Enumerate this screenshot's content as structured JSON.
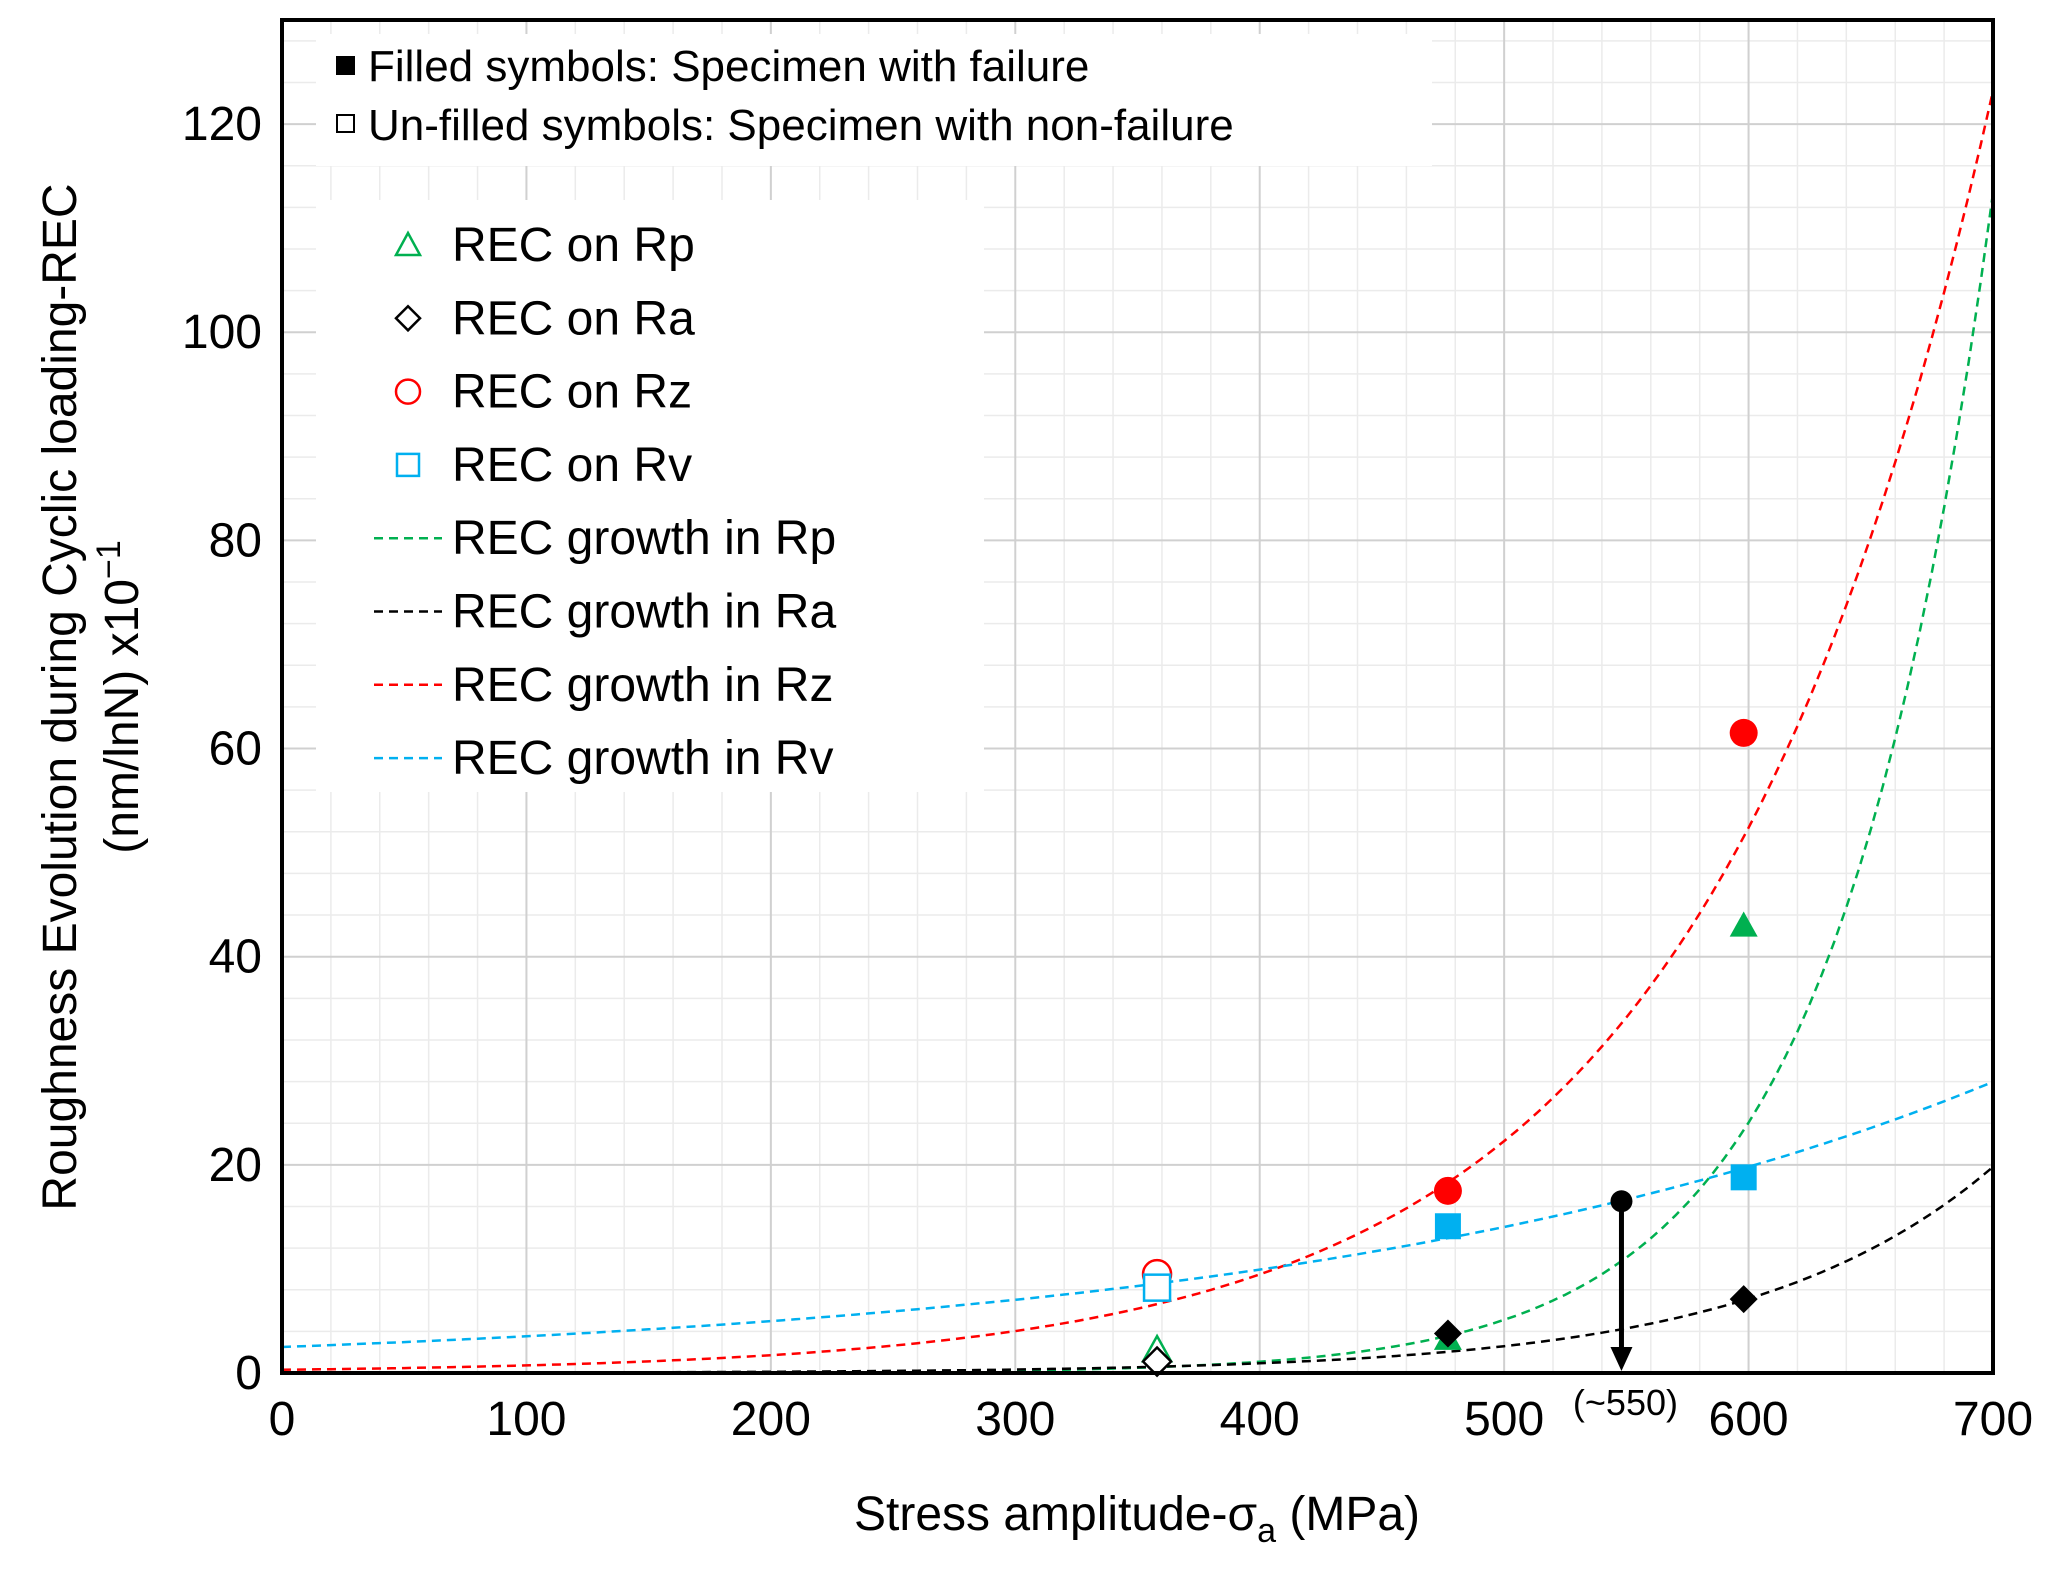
{
  "chart_data": {
    "type": "scatter",
    "xlabel_main": "Stress amplitude-σ",
    "xlabel_sub": "a",
    "xlabel_unit": " (MPa)",
    "ylabel_line1": "Roughness Evolution during Cyclic loading-REC",
    "ylabel_line2_main": "(nm/lnN) x10",
    "ylabel_line2_exp": "−1",
    "xlim": [
      0,
      700
    ],
    "ylim": [
      0,
      130
    ],
    "x_ticks": [
      0,
      100,
      200,
      300,
      400,
      500,
      600,
      700
    ],
    "y_ticks": [
      0,
      20,
      40,
      60,
      80,
      100,
      120
    ],
    "x_tick_labels": [
      "0",
      "100",
      "200",
      "300",
      "400",
      "500",
      "600",
      "700"
    ],
    "y_tick_labels": [
      "0",
      "20",
      "40",
      "60",
      "80",
      "100",
      "120"
    ],
    "legend_note_filled": "Filled symbols: Specimen with failure",
    "legend_note_unfilled": "Un-filled symbols: Specimen with non-failure",
    "colors": {
      "Rp": "#00b050",
      "Ra": "#000000",
      "Rz": "#ff0000",
      "Rv": "#00b0f0"
    },
    "series": [
      {
        "name": "REC on Rp",
        "key": "Rp",
        "marker": "triangle",
        "points": [
          {
            "x": 358,
            "y": 2.2,
            "filled": false
          },
          {
            "x": 477,
            "y": 3.3,
            "filled": true
          },
          {
            "x": 598,
            "y": 43,
            "filled": true
          }
        ]
      },
      {
        "name": "REC on Ra",
        "key": "Ra",
        "marker": "diamond",
        "points": [
          {
            "x": 358,
            "y": 1.1,
            "filled": false
          },
          {
            "x": 477,
            "y": 3.8,
            "filled": true
          },
          {
            "x": 598,
            "y": 7.1,
            "filled": true
          }
        ]
      },
      {
        "name": "REC on Rz",
        "key": "Rz",
        "marker": "circle",
        "points": [
          {
            "x": 358,
            "y": 9.5,
            "filled": false
          },
          {
            "x": 477,
            "y": 17.5,
            "filled": true
          },
          {
            "x": 598,
            "y": 61.5,
            "filled": true
          }
        ]
      },
      {
        "name": "REC on Rv",
        "key": "Rv",
        "marker": "square",
        "points": [
          {
            "x": 358,
            "y": 8.2,
            "filled": false
          },
          {
            "x": 477,
            "y": 14.1,
            "filled": true
          },
          {
            "x": 598,
            "y": 18.8,
            "filled": true
          }
        ]
      }
    ],
    "trendlines": [
      {
        "name": "REC growth in Rp",
        "key": "Rp",
        "a": 0.0022,
        "b": 0.0155
      },
      {
        "name": "REC growth in Ra",
        "key": "Ra",
        "a": 0.0157,
        "b": 0.0102
      },
      {
        "name": "REC growth in Rz",
        "key": "Rz",
        "a": 0.31,
        "b": 0.00855
      },
      {
        "name": "REC growth in Rv",
        "key": "Rv",
        "a": 2.5,
        "b": 0.00345
      }
    ],
    "annotation": {
      "label": "(~550)",
      "x": 548,
      "y_start": 16.5,
      "y_end": 0
    }
  }
}
